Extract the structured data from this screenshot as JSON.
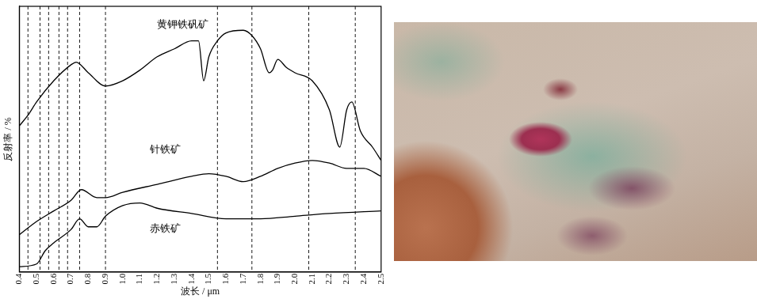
{
  "chart_data": {
    "type": "line",
    "x_label": "波长 / μm",
    "y_label": "反射率 / %",
    "xlim": [
      0.4,
      2.5
    ],
    "xticks": [
      0.4,
      0.5,
      0.6,
      0.7,
      0.8,
      0.9,
      {
        "value": 1,
        "label": "1.0"
      },
      1.1,
      1.2,
      1.3,
      1.4,
      1.5,
      1.6,
      1.7,
      1.8,
      1.9,
      {
        "value": 2,
        "label": "2.0"
      },
      2.1,
      2.2,
      2.3,
      2.4,
      2.5
    ],
    "ylim": [
      0,
      100
    ],
    "yticks": [],
    "tick_labels": "x",
    "grid": false,
    "vlines": [
      0.45,
      0.52,
      0.57,
      0.63,
      0.68,
      0.75,
      0.9,
      1.55,
      1.75,
      2.08,
      2.35
    ],
    "series": [
      {
        "name": "黄钾铁矾矿",
        "color": "#000000",
        "x": [
          0.4,
          0.45,
          0.5,
          0.6,
          0.7,
          0.73,
          0.8,
          0.9,
          1.0,
          1.1,
          1.2,
          1.3,
          1.4,
          1.44,
          1.47,
          1.5,
          1.55,
          1.6,
          1.7,
          1.75,
          1.8,
          1.85,
          1.87,
          1.9,
          1.95,
          2.0,
          2.1,
          2.2,
          2.26,
          2.3,
          2.33,
          2.38,
          2.45,
          2.5
        ],
        "values": [
          55,
          59,
          64,
          72,
          78,
          79,
          75,
          70,
          72,
          76,
          81,
          84,
          87,
          87,
          72,
          81,
          87,
          90,
          91,
          89,
          84,
          75,
          76,
          80,
          77,
          75,
          72,
          61,
          47,
          61,
          64,
          53,
          47,
          42
        ]
      },
      {
        "name": "针铁矿",
        "color": "#000000",
        "x": [
          0.4,
          0.5,
          0.6,
          0.7,
          0.76,
          0.85,
          0.9,
          1.0,
          1.2,
          1.4,
          1.5,
          1.6,
          1.7,
          1.8,
          1.9,
          2.0,
          2.1,
          2.2,
          2.3,
          2.4,
          2.5
        ],
        "values": [
          14,
          19,
          23,
          27,
          31,
          28,
          28,
          30,
          33,
          36,
          37,
          36,
          34,
          36,
          39,
          41,
          42,
          41,
          39,
          39,
          36
        ]
      },
      {
        "name": "赤铁矿",
        "color": "#000000",
        "x": [
          0.4,
          0.5,
          0.55,
          0.6,
          0.7,
          0.75,
          0.8,
          0.85,
          0.9,
          1.0,
          1.1,
          1.2,
          1.4,
          1.6,
          1.8,
          2.0,
          2.2,
          2.5
        ],
        "values": [
          2,
          3,
          8,
          11,
          16,
          20,
          17,
          17,
          21,
          25,
          26,
          24,
          22,
          20,
          20,
          21,
          22,
          23
        ]
      }
    ]
  }
}
